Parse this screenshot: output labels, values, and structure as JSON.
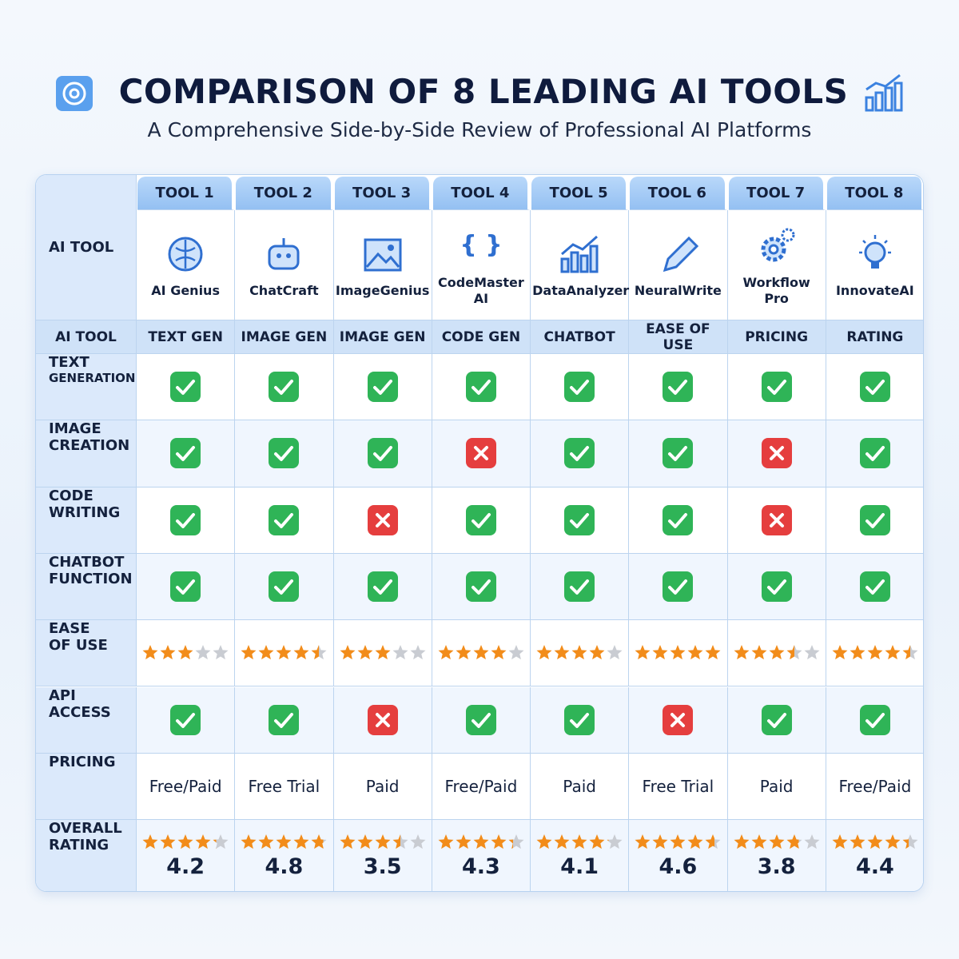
{
  "header": {
    "title": "COMPARISON OF 8 LEADING AI TOOLS",
    "subtitle": "A Comprehensive Side-by-Side Review of Professional AI Platforms"
  },
  "table": {
    "corner_label": "AI TOOL",
    "tools": [
      {
        "tag": "TOOL 1",
        "name": "AI Genius"
      },
      {
        "tag": "TOOL 2",
        "name": "ChatCraft"
      },
      {
        "tag": "TOOL 3",
        "name": "ImageGenius"
      },
      {
        "tag": "TOOL 4",
        "name": "CodeMaster AI"
      },
      {
        "tag": "TOOL 5",
        "name": "DataAnalyzer"
      },
      {
        "tag": "TOOL 6",
        "name": "NeuralWrite"
      },
      {
        "tag": "TOOL 7",
        "name": "Workflow Pro"
      },
      {
        "tag": "TOOL 8",
        "name": "InnovateAI"
      }
    ],
    "category_row": {
      "label": "AI TOOL",
      "columns": [
        "TEXT GEN",
        "IMAGE GEN",
        "IMAGE GEN",
        "CODE GEN",
        "CHATBOT",
        "EASE OF USE",
        "PRICING",
        "RATING"
      ]
    },
    "rows": [
      {
        "label": [
          "TEXT",
          "GENERATION"
        ],
        "cells": [
          true,
          true,
          true,
          true,
          true,
          true,
          true,
          true
        ]
      },
      {
        "label": [
          "IMAGE",
          "CREATION"
        ],
        "cells": [
          true,
          true,
          true,
          false,
          true,
          true,
          false,
          true
        ]
      },
      {
        "label": [
          "CODE",
          "WRITING"
        ],
        "cells": [
          true,
          true,
          false,
          true,
          true,
          true,
          false,
          true
        ]
      },
      {
        "label": [
          "CHATBOT",
          "FUNCTION"
        ],
        "cells": [
          true,
          true,
          true,
          true,
          true,
          true,
          true,
          true
        ]
      },
      {
        "label": [
          "EASE",
          "OF USE"
        ],
        "cells": [
          3,
          4.5,
          3,
          4,
          4,
          5,
          3.5,
          4.5
        ]
      },
      {
        "label": [
          "API",
          "ACCESS"
        ],
        "cells": [
          true,
          true,
          false,
          true,
          true,
          false,
          true,
          true
        ]
      },
      {
        "label": [
          "PRICING"
        ],
        "cells": [
          "Free/Paid",
          "Free Trial",
          "Paid",
          "Free/Paid",
          "Paid",
          "Free Trial",
          "Paid",
          "Free/Paid"
        ]
      },
      {
        "label": [
          "OVERALL",
          "RATING"
        ],
        "cells": [
          4.2,
          4.8,
          3.5,
          4.3,
          4.1,
          4.6,
          3.8,
          4.4
        ]
      }
    ]
  }
}
